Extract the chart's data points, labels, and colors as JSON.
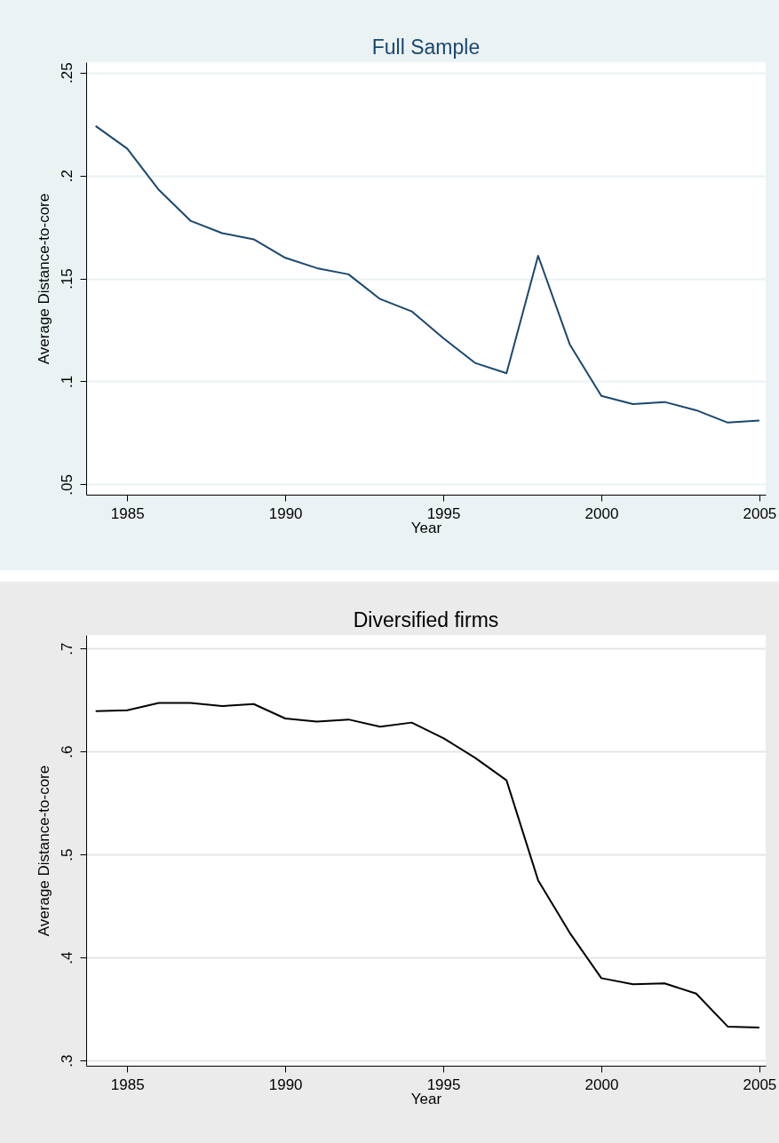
{
  "chart_data": [
    {
      "type": "line",
      "title": "Full Sample",
      "xlabel": "Year",
      "ylabel": "Average Distance-to-core",
      "x": [
        1984,
        1985,
        1986,
        1987,
        1988,
        1989,
        1990,
        1991,
        1992,
        1993,
        1994,
        1995,
        1996,
        1997,
        1998,
        1999,
        2000,
        2001,
        2002,
        2003,
        2004,
        2005
      ],
      "series": [
        {
          "color": "#1a476f",
          "values": [
            0.224,
            0.213,
            0.193,
            0.178,
            0.172,
            0.169,
            0.16,
            0.155,
            0.152,
            0.14,
            0.134,
            0.121,
            0.109,
            0.104,
            0.161,
            0.118,
            0.093,
            0.089,
            0.09,
            0.086,
            0.08,
            0.081
          ]
        }
      ],
      "xlim": [
        1983.7,
        2005.2
      ],
      "xticks": [
        1985,
        1990,
        1995,
        2000,
        2005
      ],
      "ylim": [
        0.045,
        0.255
      ],
      "yticks": [
        {
          "value": 0.05,
          "label": ".05"
        },
        {
          "value": 0.1,
          "label": ".1"
        },
        {
          "value": 0.15,
          "label": ".15"
        },
        {
          "value": 0.2,
          "label": ".2"
        },
        {
          "value": 0.25,
          "label": ".25"
        }
      ],
      "grid": "y",
      "line_style": "solid"
    },
    {
      "type": "line",
      "title": "Diversified firms",
      "xlabel": "Year",
      "ylabel": "Average Distance-to-core",
      "x": [
        1984,
        1985,
        1986,
        1987,
        1988,
        1989,
        1990,
        1991,
        1992,
        1993,
        1994,
        1995,
        1996,
        1997,
        1998,
        1999,
        2000,
        2001,
        2002,
        2003,
        2004,
        2005
      ],
      "series": [
        {
          "color": "#000000",
          "values": [
            0.639,
            0.64,
            0.647,
            0.647,
            0.644,
            0.646,
            0.632,
            0.629,
            0.631,
            0.624,
            0.628,
            0.613,
            0.594,
            0.572,
            0.475,
            0.424,
            0.38,
            0.374,
            0.375,
            0.365,
            0.333,
            0.332
          ]
        }
      ],
      "xlim": [
        1983.7,
        2005.2
      ],
      "xticks": [
        1985,
        1990,
        1995,
        2000,
        2005
      ],
      "ylim": [
        0.295,
        0.713
      ],
      "yticks": [
        {
          "value": 0.3,
          "label": ".3"
        },
        {
          "value": 0.4,
          "label": ".4"
        },
        {
          "value": 0.5,
          "label": ".5"
        },
        {
          "value": 0.6,
          "label": ".6"
        },
        {
          "value": 0.7,
          "label": ".7"
        }
      ],
      "grid": "y",
      "line_style": "solid"
    }
  ]
}
